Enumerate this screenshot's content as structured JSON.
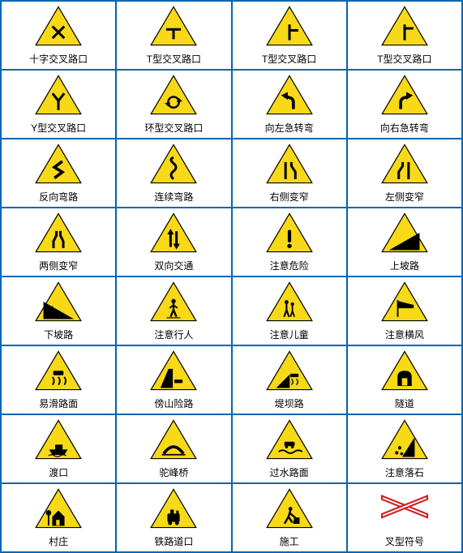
{
  "grid": {
    "cols": 4,
    "rows": 8,
    "border_color": "#0066b3",
    "cell_bg": "#ffffff"
  },
  "sign_style": {
    "tri_fill": "#f7d917",
    "tri_stroke": "#000000",
    "tri_stroke_w": 2,
    "symbol_color": "#000000",
    "cross_stroke": "#d02020",
    "label_fontsize": 12,
    "label_color": "#000000"
  },
  "signs": [
    {
      "id": "cross-intersection",
      "label": "十字交叉路口",
      "shape": "tri",
      "symbol": "x-cross"
    },
    {
      "id": "t-intersection-1",
      "label": "T型交叉路口",
      "shape": "tri",
      "symbol": "t-down"
    },
    {
      "id": "t-intersection-2",
      "label": "T型交叉路口",
      "shape": "tri",
      "symbol": "t-right"
    },
    {
      "id": "t-intersection-3",
      "label": "T型交叉路口",
      "shape": "tri",
      "symbol": "t-right-up"
    },
    {
      "id": "y-intersection",
      "label": "Y型交叉路口",
      "shape": "tri",
      "symbol": "y-fork"
    },
    {
      "id": "roundabout",
      "label": "环型交叉路口",
      "shape": "tri",
      "symbol": "ring-arrows"
    },
    {
      "id": "sharp-left",
      "label": "向左急转弯",
      "shape": "tri",
      "symbol": "arrow-sharp-left"
    },
    {
      "id": "sharp-right",
      "label": "向右急转弯",
      "shape": "tri",
      "symbol": "arrow-sharp-right"
    },
    {
      "id": "reverse-curve",
      "label": "反向弯路",
      "shape": "tri",
      "symbol": "z-curve"
    },
    {
      "id": "winding",
      "label": "连续弯路",
      "shape": "tri",
      "symbol": "s-curve"
    },
    {
      "id": "narrow-right",
      "label": "右侧变窄",
      "shape": "tri",
      "symbol": "narrow-r"
    },
    {
      "id": "narrow-left",
      "label": "左侧变窄",
      "shape": "tri",
      "symbol": "narrow-l"
    },
    {
      "id": "narrow-both",
      "label": "两侧变窄",
      "shape": "tri",
      "symbol": "narrow-both"
    },
    {
      "id": "two-way",
      "label": "双向交通",
      "shape": "tri",
      "symbol": "two-way-arrows"
    },
    {
      "id": "danger",
      "label": "注意危险",
      "shape": "tri",
      "symbol": "exclaim"
    },
    {
      "id": "uphill",
      "label": "上坡路",
      "shape": "tri",
      "symbol": "slope-up"
    },
    {
      "id": "downhill",
      "label": "下坡路",
      "shape": "tri",
      "symbol": "slope-down"
    },
    {
      "id": "pedestrian",
      "label": "注意行人",
      "shape": "tri",
      "symbol": "walker"
    },
    {
      "id": "children",
      "label": "注意儿童",
      "shape": "tri",
      "symbol": "children"
    },
    {
      "id": "crosswind",
      "label": "注意横风",
      "shape": "tri",
      "symbol": "windsock"
    },
    {
      "id": "slippery",
      "label": "易滑路面",
      "shape": "tri",
      "symbol": "car-skid"
    },
    {
      "id": "cliff",
      "label": "傍山险路",
      "shape": "tri",
      "symbol": "cliff"
    },
    {
      "id": "embankment",
      "label": "堤坝路",
      "shape": "tri",
      "symbol": "embankment"
    },
    {
      "id": "tunnel",
      "label": "隧道",
      "shape": "tri",
      "symbol": "tunnel"
    },
    {
      "id": "ferry",
      "label": "渡口",
      "shape": "tri",
      "symbol": "ferry"
    },
    {
      "id": "hump-bridge",
      "label": "驼峰桥",
      "shape": "tri",
      "symbol": "hump"
    },
    {
      "id": "ford",
      "label": "过水路面",
      "shape": "tri",
      "symbol": "car-water"
    },
    {
      "id": "falling-rocks",
      "label": "注意落石",
      "shape": "tri",
      "symbol": "rocks"
    },
    {
      "id": "village",
      "label": "村庄",
      "shape": "tri",
      "symbol": "house"
    },
    {
      "id": "railway",
      "label": "铁路道口",
      "shape": "tri",
      "symbol": "train"
    },
    {
      "id": "roadwork",
      "label": "施工",
      "shape": "tri",
      "symbol": "digger"
    },
    {
      "id": "crossbuck",
      "label": "叉型符号",
      "shape": "cross",
      "symbol": "crossbuck"
    }
  ]
}
